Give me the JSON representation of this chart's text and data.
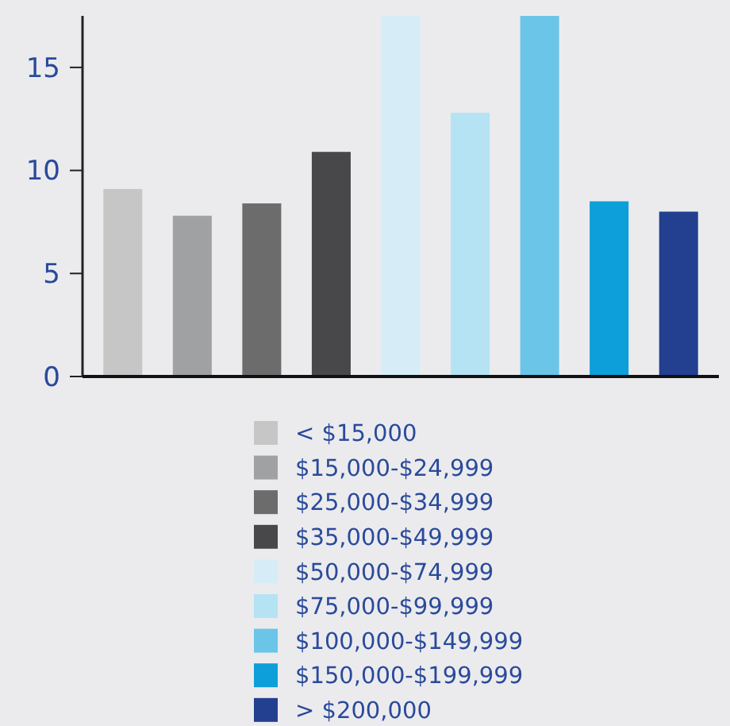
{
  "chart_data": {
    "type": "bar",
    "stacked": true,
    "categories": [
      null,
      null,
      null,
      null,
      null,
      null,
      null,
      null,
      null
    ],
    "series": [
      {
        "name": "< $15,000",
        "color": "#c5c6c5",
        "values": [
          9.1,
          null,
          null,
          null,
          null,
          null,
          null,
          null,
          null
        ]
      },
      {
        "name": "$15,000-$24,999",
        "color": "#9fa1a2",
        "values": [
          null,
          7.8,
          null,
          null,
          null,
          null,
          null,
          null,
          null
        ]
      },
      {
        "name": "$25,000-$34,999",
        "color": "#6c6c6d",
        "values": [
          null,
          null,
          8.4,
          null,
          null,
          null,
          null,
          null,
          null
        ]
      },
      {
        "name": "$35,000-$49,999",
        "color": "#48484a",
        "values": [
          null,
          null,
          null,
          10.9,
          null,
          null,
          null,
          null,
          null
        ]
      },
      {
        "name": "$50,000-$74,999",
        "color": "#d6edf7",
        "values": [
          null,
          null,
          null,
          null,
          17.5,
          null,
          null,
          null,
          null
        ]
      },
      {
        "name": "$75,000-$99,999",
        "color": "#b5e3f4",
        "values": [
          null,
          null,
          null,
          null,
          null,
          12.8,
          null,
          null,
          null
        ]
      },
      {
        "name": "$100,000-$149,999",
        "color": "#6bc5e8",
        "values": [
          null,
          null,
          null,
          null,
          null,
          null,
          17.5,
          null,
          null
        ]
      },
      {
        "name": "$150,000-$199,999",
        "color": "#0c9fda",
        "values": [
          null,
          null,
          null,
          null,
          null,
          null,
          null,
          8.5,
          null
        ]
      },
      {
        "name": "> $200,000",
        "color": "#233f8f",
        "values": [
          null,
          null,
          null,
          null,
          null,
          null,
          null,
          null,
          8.0
        ]
      }
    ],
    "ylim": [
      0,
      17.5
    ],
    "yticks": [
      0,
      5,
      10,
      15
    ],
    "tick_labels": "y",
    "legend": "bottom"
  }
}
